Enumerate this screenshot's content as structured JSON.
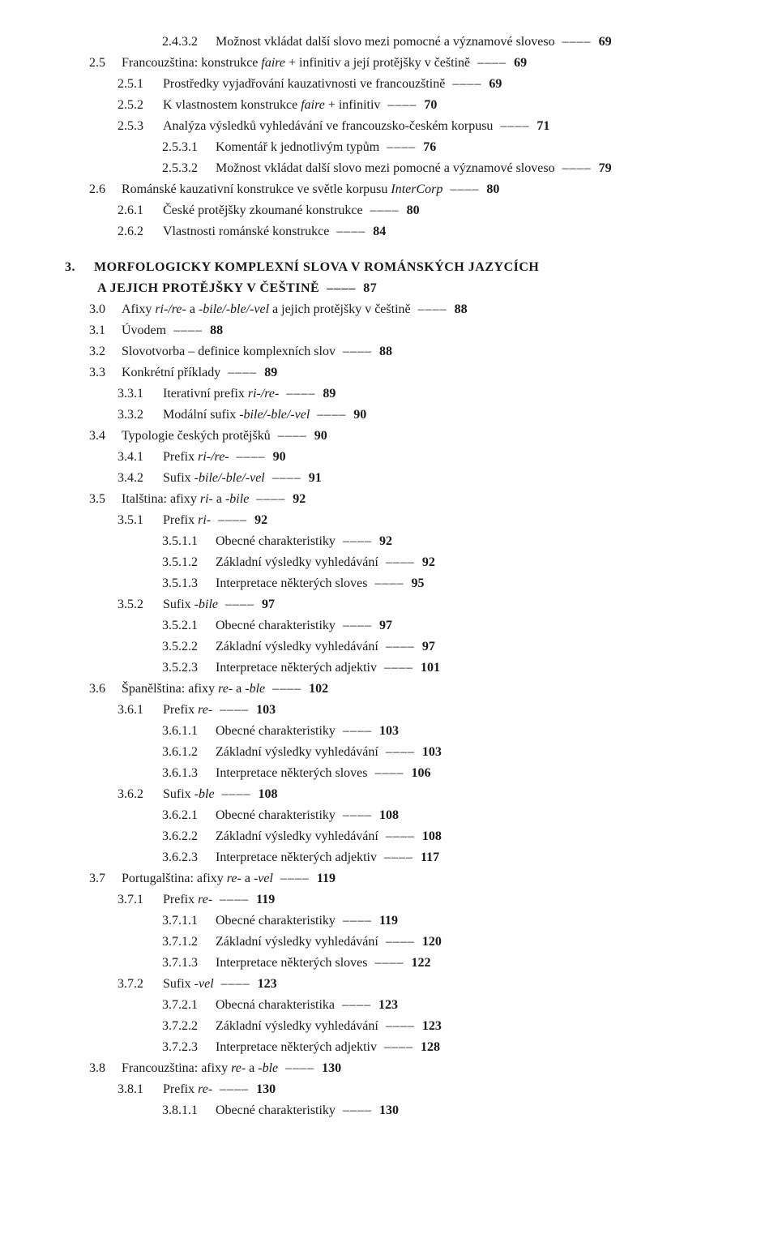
{
  "separator": "––––",
  "entries": [
    {
      "indent": 3,
      "num": "2.4.3.2",
      "text": "Možnost vkládat další slovo mezi pomocné a významové sloveso",
      "page": "69"
    },
    {
      "indent": 1,
      "num": "2.5",
      "textParts": [
        "Francouzština: konstrukce ",
        {
          "i": "faire"
        },
        " + infinitiv a její protějšky v češtině"
      ],
      "page": "69"
    },
    {
      "indent": 2,
      "num": "2.5.1",
      "text": "Prostředky vyjadřování kauzativnosti ve francouzštině",
      "page": "69"
    },
    {
      "indent": 2,
      "num": "2.5.2",
      "textParts": [
        "K vlastnostem konstrukce ",
        {
          "i": "faire"
        },
        " + infinitiv"
      ],
      "page": "70"
    },
    {
      "indent": 2,
      "num": "2.5.3",
      "text": "Analýza výsledků vyhledávání ve francouzsko-českém korpusu",
      "page": "71"
    },
    {
      "indent": 3,
      "num": "2.5.3.1",
      "text": "Komentář k jednotlivým typům",
      "page": "76"
    },
    {
      "indent": 3,
      "num": "2.5.3.2",
      "text": "Možnost vkládat další slovo mezi pomocné a významové sloveso",
      "page": "79"
    },
    {
      "indent": 1,
      "num": "2.6",
      "textParts": [
        "Románské kauzativní konstrukce ve světle korpusu ",
        {
          "i": "InterCorp"
        }
      ],
      "page": "80"
    },
    {
      "indent": 2,
      "num": "2.6.1",
      "text": "České protějšky zkoumané konstrukce",
      "page": "80"
    },
    {
      "indent": 2,
      "num": "2.6.2",
      "text": "Vlastnosti románské konstrukce",
      "page": "84"
    },
    {
      "indent": 0,
      "num": "3.",
      "chapter": true,
      "gapBefore": true,
      "text": "MORFOLOGICKY KOMPLEXNÍ SLOVA V ROMÁNSKÝCH JAZYCÍCH"
    },
    {
      "indent": 1,
      "num": "",
      "chapter": true,
      "text": "A JEJICH PROTĚJŠKY V ČEŠTINĚ",
      "page": "87",
      "noNum": true
    },
    {
      "indent": 1,
      "num": "3.0",
      "textParts": [
        "Afixy ",
        {
          "i": "ri-/re-"
        },
        " a ",
        {
          "i": "-bile/-ble/-vel"
        },
        " a jejich protějšky v češtině"
      ],
      "page": "88"
    },
    {
      "indent": 1,
      "num": "3.1",
      "text": "Úvodem",
      "page": "88"
    },
    {
      "indent": 1,
      "num": "3.2",
      "text": "Slovotvorba – definice komplexních slov",
      "page": "88"
    },
    {
      "indent": 1,
      "num": "3.3",
      "text": "Konkrétní příklady",
      "page": "89"
    },
    {
      "indent": 2,
      "num": "3.3.1",
      "textParts": [
        "Iterativní prefix ",
        {
          "i": "ri-/re-"
        }
      ],
      "page": "89"
    },
    {
      "indent": 2,
      "num": "3.3.2",
      "textParts": [
        "Modální sufix ",
        {
          "i": "-bile/-ble/-vel"
        }
      ],
      "page": "90"
    },
    {
      "indent": 1,
      "num": "3.4",
      "text": "Typologie českých protějšků",
      "page": "90"
    },
    {
      "indent": 2,
      "num": "3.4.1",
      "textParts": [
        "Prefix ",
        {
          "i": "ri-/re-"
        }
      ],
      "page": "90"
    },
    {
      "indent": 2,
      "num": "3.4.2",
      "textParts": [
        "Sufix ",
        {
          "i": "-bile/-ble/-vel"
        }
      ],
      "page": "91"
    },
    {
      "indent": 1,
      "num": "3.5",
      "textParts": [
        "Italština: afixy ",
        {
          "i": "ri-"
        },
        " a ",
        {
          "i": "-bile"
        }
      ],
      "page": "92"
    },
    {
      "indent": 2,
      "num": "3.5.1",
      "textParts": [
        "Prefix ",
        {
          "i": "ri-"
        }
      ],
      "page": "92"
    },
    {
      "indent": 3,
      "num": "3.5.1.1",
      "text": "Obecné charakteristiky",
      "page": "92"
    },
    {
      "indent": 3,
      "num": "3.5.1.2",
      "text": "Základní výsledky vyhledávání",
      "page": "92"
    },
    {
      "indent": 3,
      "num": "3.5.1.3",
      "text": "Interpretace některých sloves",
      "page": "95"
    },
    {
      "indent": 2,
      "num": "3.5.2",
      "textParts": [
        "Sufix ",
        {
          "i": "-bile"
        }
      ],
      "page": "97"
    },
    {
      "indent": 3,
      "num": "3.5.2.1",
      "text": "Obecné charakteristiky",
      "page": "97"
    },
    {
      "indent": 3,
      "num": "3.5.2.2",
      "text": "Základní výsledky vyhledávání",
      "page": "97"
    },
    {
      "indent": 3,
      "num": "3.5.2.3",
      "text": "Interpretace některých adjektiv",
      "page": "101"
    },
    {
      "indent": 1,
      "num": "3.6",
      "textParts": [
        "Španělština: afixy ",
        {
          "i": "re-"
        },
        " a ",
        {
          "i": "-ble"
        }
      ],
      "page": "102"
    },
    {
      "indent": 2,
      "num": "3.6.1",
      "textParts": [
        "Prefix ",
        {
          "i": "re-"
        }
      ],
      "page": "103"
    },
    {
      "indent": 3,
      "num": "3.6.1.1",
      "text": "Obecné charakteristiky",
      "page": "103"
    },
    {
      "indent": 3,
      "num": "3.6.1.2",
      "text": "Základní výsledky vyhledávání",
      "page": "103"
    },
    {
      "indent": 3,
      "num": "3.6.1.3",
      "text": "Interpretace některých sloves",
      "page": "106"
    },
    {
      "indent": 2,
      "num": "3.6.2",
      "textParts": [
        "Sufix ",
        {
          "i": "-ble"
        }
      ],
      "page": "108"
    },
    {
      "indent": 3,
      "num": "3.6.2.1",
      "text": "Obecné charakteristiky",
      "page": "108"
    },
    {
      "indent": 3,
      "num": "3.6.2.2",
      "text": "Základní výsledky vyhledávání",
      "page": "108"
    },
    {
      "indent": 3,
      "num": "3.6.2.3",
      "text": "Interpretace některých adjektiv",
      "page": "117"
    },
    {
      "indent": 1,
      "num": "3.7",
      "textParts": [
        "Portugalština: afixy ",
        {
          "i": "re-"
        },
        " a ",
        {
          "i": "-vel"
        }
      ],
      "page": "119"
    },
    {
      "indent": 2,
      "num": "3.7.1",
      "textParts": [
        "Prefix ",
        {
          "i": "re-"
        }
      ],
      "page": "119"
    },
    {
      "indent": 3,
      "num": "3.7.1.1",
      "text": "Obecné charakteristiky",
      "page": "119"
    },
    {
      "indent": 3,
      "num": "3.7.1.2",
      "text": "Základní výsledky vyhledávání",
      "page": "120"
    },
    {
      "indent": 3,
      "num": "3.7.1.3",
      "text": "Interpretace některých sloves",
      "page": "122"
    },
    {
      "indent": 2,
      "num": "3.7.2",
      "textParts": [
        "Sufix ",
        {
          "i": "-vel"
        }
      ],
      "page": "123"
    },
    {
      "indent": 3,
      "num": "3.7.2.1",
      "text": "Obecná charakteristika",
      "page": "123"
    },
    {
      "indent": 3,
      "num": "3.7.2.2",
      "text": "Základní výsledky vyhledávání",
      "page": "123"
    },
    {
      "indent": 3,
      "num": "3.7.2.3",
      "text": "Interpretace některých adjektiv",
      "page": "128"
    },
    {
      "indent": 1,
      "num": "3.8",
      "textParts": [
        "Francouzština: afixy ",
        {
          "i": "re-"
        },
        " a ",
        {
          "i": "-ble"
        }
      ],
      "page": "130"
    },
    {
      "indent": 2,
      "num": "3.8.1",
      "textParts": [
        "Prefix ",
        {
          "i": "re-"
        }
      ],
      "page": "130"
    },
    {
      "indent": 3,
      "num": "3.8.1.1",
      "text": "Obecné charakteristiky",
      "page": "130"
    }
  ]
}
